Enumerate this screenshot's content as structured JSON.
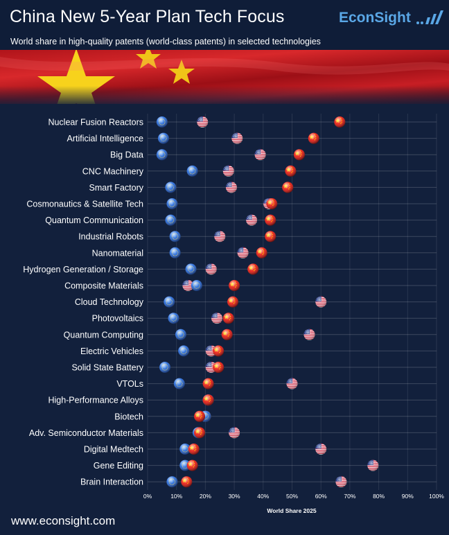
{
  "header": {
    "title": "China New 5-Year Plan Tech Focus",
    "subtitle": "World share in high-quality patents (world-class patents) in selected technologies",
    "logo": "EconSight"
  },
  "footer": {
    "url": "www.econsight.com"
  },
  "colors": {
    "china": "#e8241c",
    "usa": "#b7243a",
    "eu": "#2f6fd9",
    "background": "#12203c",
    "accent": "#5aa7e6"
  },
  "chart_data": {
    "type": "scatter",
    "title": "China New 5-Year Plan Tech Focus",
    "subtitle": "World share in high-quality patents (world-class patents) in selected technologies",
    "xlabel": "World Share 2025",
    "ylabel": "",
    "xlim": [
      0,
      100
    ],
    "x_ticks": [
      "0%",
      "10%",
      "20%",
      "30%",
      "40%",
      "50%",
      "60%",
      "70%",
      "80%",
      "90%",
      "100%"
    ],
    "grid": true,
    "categories": [
      "Nuclear Fusion Reactors",
      "Artificial Intelligence",
      "Big Data",
      "CNC Machinery",
      "Smart Factory",
      "Cosmonautics & Satellite Tech",
      "Quantum Communication",
      "Industrial Robots",
      "Nanomaterial",
      "Hydrogen Generation / Storage",
      "Composite Materials",
      "Cloud Technology",
      "Photovoltaics",
      "Quantum Computing",
      "Electric Vehicles",
      "Solid State Battery",
      "VTOLs",
      "High-Performance Alloys",
      "Biotech",
      "Adv. Semiconductor Materials",
      "Digital Medtech",
      "Gene Editing",
      "Brain Interaction"
    ],
    "series": [
      {
        "marker": "usa",
        "values": [
          19,
          31,
          39,
          28,
          29,
          42,
          36,
          25,
          33,
          22,
          14,
          60,
          24,
          56,
          22,
          22,
          50,
          21,
          20,
          30,
          60,
          78,
          67
        ]
      },
      {
        "marker": "eu",
        "values": [
          5,
          5.5,
          5,
          15.5,
          8,
          8.5,
          8,
          9.5,
          9.5,
          15,
          17,
          7.5,
          9,
          11.5,
          12.5,
          6,
          11,
          21,
          20,
          17.5,
          13,
          13,
          8.5
        ]
      },
      {
        "marker": "china",
        "values": [
          66.5,
          57.5,
          52.5,
          49.5,
          48.5,
          43,
          42.5,
          42.5,
          39.5,
          36.5,
          30,
          29.5,
          28,
          27.5,
          24.5,
          24.5,
          21,
          21,
          18,
          18,
          16,
          15.5,
          13.5
        ]
      }
    ]
  }
}
